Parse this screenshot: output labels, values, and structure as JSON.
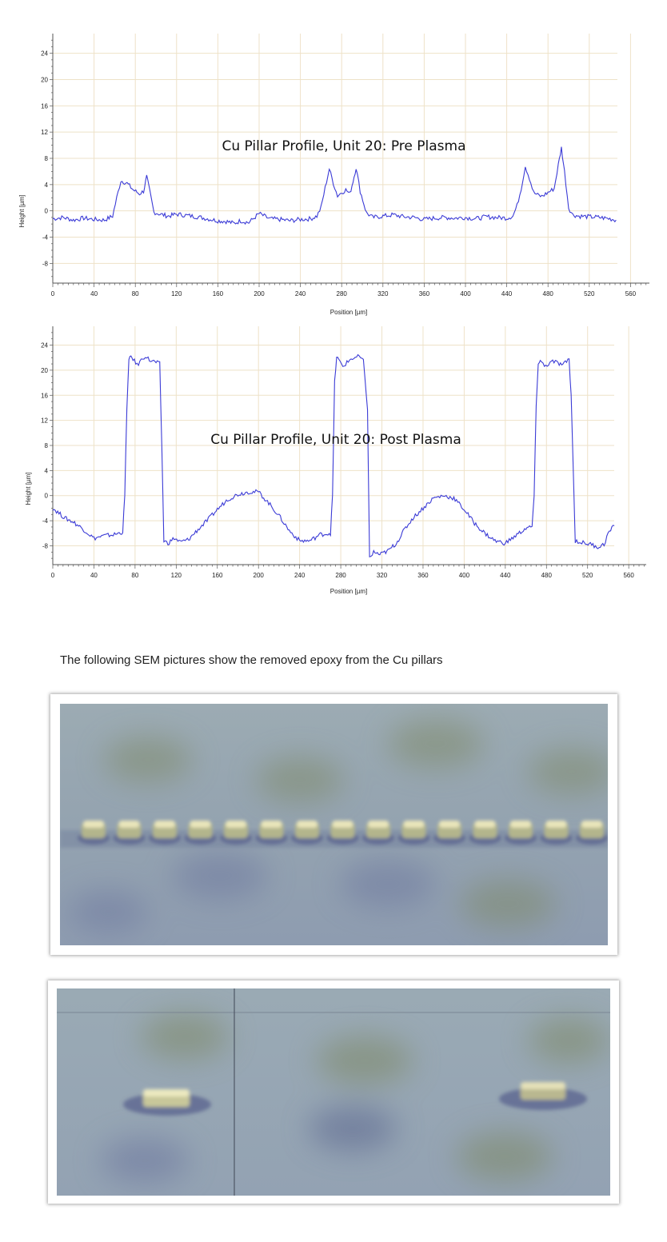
{
  "charts": [
    {
      "id": "pre",
      "title": "Cu Pillar Profile, Unit 20: Pre Plasma",
      "xlabel": "Position [µm]",
      "ylabel": "Height [µm]",
      "x_ticks": [
        "0",
        "40",
        "80",
        "120",
        "160",
        "200",
        "240",
        "280",
        "320",
        "360",
        "400",
        "440",
        "480",
        "520",
        "560"
      ],
      "y_ticks": [
        "24",
        "20",
        "16",
        "12",
        "8",
        "4",
        "0",
        "-4",
        "-8"
      ],
      "line_color": "#3b3bd6"
    },
    {
      "id": "post",
      "title": "Cu Pillar Profile, Unit 20: Post Plasma",
      "xlabel": "Position [µm]",
      "ylabel": "Height [µm]",
      "x_ticks": [
        "0",
        "40",
        "80",
        "120",
        "160",
        "200",
        "240",
        "280",
        "320",
        "360",
        "400",
        "440",
        "480",
        "520",
        "560"
      ],
      "y_ticks": [
        "24",
        "20",
        "16",
        "12",
        "8",
        "4",
        "0",
        "-4",
        "-8"
      ],
      "line_color": "#3b3bd6"
    }
  ],
  "chart_data": [
    {
      "type": "line",
      "title": "Cu Pillar Profile, Unit 20: Pre Plasma",
      "xlabel": "Position [µm]",
      "ylabel": "Height [µm]",
      "xlim": [
        0,
        580
      ],
      "ylim": [
        -11,
        27
      ],
      "grid": true,
      "series": [
        {
          "x": [
            0,
            10,
            20,
            30,
            40,
            50,
            58,
            62,
            66,
            72,
            78,
            84,
            88,
            91,
            94,
            98,
            104,
            112,
            120,
            130,
            140,
            150,
            160,
            168,
            176,
            182,
            190,
            200,
            210,
            220,
            230,
            240,
            250,
            256,
            260,
            264,
            268,
            272,
            276,
            280,
            284,
            288,
            291,
            294,
            298,
            304,
            310,
            320,
            330,
            340,
            350,
            360,
            370,
            380,
            390,
            400,
            410,
            420,
            430,
            440,
            446,
            450,
            454,
            458,
            462,
            466,
            470,
            474,
            480,
            486,
            490,
            493,
            496,
            500,
            504,
            510,
            520,
            530,
            540,
            546
          ],
          "y": [
            -1.2,
            -1.0,
            -1.4,
            -1.1,
            -1.3,
            -1.4,
            -0.8,
            2.0,
            4.6,
            4.2,
            3.2,
            2.6,
            3.0,
            5.2,
            3.0,
            -0.2,
            -0.5,
            -0.8,
            -0.5,
            -0.7,
            -0.9,
            -1.2,
            -1.5,
            -1.6,
            -1.9,
            -1.5,
            -1.8,
            -0.4,
            -1.2,
            -1.3,
            -1.5,
            -1.3,
            -1.2,
            -0.8,
            0.5,
            3.5,
            6.4,
            4.2,
            2.3,
            2.8,
            3.2,
            2.6,
            4.5,
            6.6,
            3.0,
            -0.3,
            -1.0,
            -0.8,
            -0.6,
            -0.9,
            -1.0,
            -1.3,
            -1.1,
            -1.0,
            -1.1,
            -1.0,
            -1.2,
            -0.9,
            -1.0,
            -1.1,
            -0.8,
            0.8,
            3.4,
            6.8,
            5.0,
            2.8,
            2.4,
            2.2,
            2.8,
            3.4,
            7.0,
            9.6,
            6.0,
            0.5,
            -0.6,
            -0.8,
            -0.9,
            -1.0,
            -1.2,
            -1.4
          ]
        }
      ]
    },
    {
      "type": "line",
      "title": "Cu Pillar Profile, Unit 20: Post Plasma",
      "xlabel": "Position [µm]",
      "ylabel": "Height [µm]",
      "xlim": [
        0,
        580
      ],
      "ylim": [
        -11,
        27
      ],
      "grid": true,
      "series": [
        {
          "x": [
            0,
            6,
            12,
            20,
            30,
            40,
            50,
            60,
            68,
            70,
            72,
            74,
            76,
            78,
            82,
            86,
            90,
            94,
            98,
            104,
            106,
            108,
            112,
            118,
            124,
            132,
            140,
            150,
            160,
            170,
            180,
            190,
            200,
            210,
            220,
            230,
            240,
            250,
            260,
            270,
            272,
            274,
            276,
            278,
            282,
            286,
            290,
            294,
            298,
            302,
            306,
            308,
            312,
            318,
            326,
            334,
            342,
            350,
            360,
            370,
            380,
            390,
            400,
            410,
            420,
            430,
            440,
            450,
            460,
            466,
            468,
            470,
            472,
            474,
            478,
            482,
            486,
            490,
            496,
            502,
            504,
            508,
            512,
            518,
            524,
            530,
            536,
            540,
            546
          ],
          "y": [
            -2.0,
            -2.8,
            -3.6,
            -4.2,
            -5.4,
            -6.8,
            -6.4,
            -6.2,
            -5.8,
            0.0,
            14.0,
            21.5,
            22.2,
            21.8,
            20.8,
            21.6,
            22.3,
            21.6,
            21.4,
            21.0,
            8.0,
            -7.2,
            -7.6,
            -6.8,
            -7.4,
            -7.0,
            -5.6,
            -4.0,
            -2.2,
            -0.6,
            0.2,
            0.6,
            0.6,
            -1.2,
            -3.2,
            -5.6,
            -7.2,
            -7.2,
            -6.2,
            -6.0,
            0.0,
            18.0,
            22.2,
            21.6,
            20.6,
            21.2,
            21.8,
            22.0,
            22.2,
            21.4,
            14.0,
            -10.0,
            -9.0,
            -9.4,
            -8.8,
            -7.6,
            -5.4,
            -3.6,
            -2.0,
            -0.4,
            0.0,
            -0.4,
            -2.2,
            -4.4,
            -6.0,
            -7.2,
            -7.6,
            -6.4,
            -5.2,
            -5.0,
            0.0,
            14.0,
            21.2,
            21.6,
            20.6,
            21.0,
            21.4,
            21.2,
            20.8,
            21.8,
            16.0,
            -7.2,
            -7.4,
            -7.6,
            -7.8,
            -8.2,
            -7.8,
            -6.0,
            -4.8
          ]
        }
      ]
    }
  ],
  "caption": "The following SEM pictures show the removed epoxy from the Cu pillars"
}
